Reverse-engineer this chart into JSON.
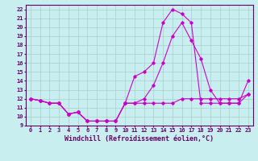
{
  "xlabel": "Windchill (Refroidissement éolien,°C)",
  "bg_color": "#c8eef0",
  "line_color": "#cc00cc",
  "xlim": [
    -0.5,
    23.5
  ],
  "ylim": [
    9,
    22.5
  ],
  "yticks": [
    9,
    10,
    11,
    12,
    13,
    14,
    15,
    16,
    17,
    18,
    19,
    20,
    21,
    22
  ],
  "xticks": [
    0,
    1,
    2,
    3,
    4,
    5,
    6,
    7,
    8,
    9,
    10,
    11,
    12,
    13,
    14,
    15,
    16,
    17,
    18,
    19,
    20,
    21,
    22,
    23
  ],
  "line1_x": [
    0,
    1,
    2,
    3,
    4,
    5,
    6,
    7,
    8,
    9,
    10,
    11,
    12,
    13,
    14,
    15,
    16,
    17,
    18,
    19,
    20,
    21,
    22,
    23
  ],
  "line1_y": [
    12,
    11.8,
    11.5,
    11.5,
    10.3,
    10.5,
    9.5,
    9.5,
    9.5,
    9.5,
    11.5,
    11.5,
    11.5,
    11.5,
    11.5,
    11.5,
    12.0,
    12.0,
    12.0,
    12.0,
    12.0,
    12.0,
    12.0,
    12.5
  ],
  "line2_x": [
    0,
    1,
    2,
    3,
    4,
    5,
    6,
    7,
    8,
    9,
    10,
    11,
    12,
    13,
    14,
    15,
    16,
    17,
    18,
    19,
    20,
    21,
    22,
    23
  ],
  "line2_y": [
    12,
    11.8,
    11.5,
    11.5,
    10.3,
    10.5,
    9.5,
    9.5,
    9.5,
    9.5,
    11.5,
    11.5,
    12.0,
    13.5,
    16.0,
    19.0,
    20.5,
    18.5,
    16.5,
    13.0,
    11.5,
    11.5,
    11.5,
    14.0
  ],
  "line3_x": [
    0,
    1,
    2,
    3,
    4,
    5,
    6,
    7,
    8,
    9,
    10,
    11,
    12,
    13,
    14,
    15,
    16,
    17,
    18,
    19,
    20,
    21,
    22,
    23
  ],
  "line3_y": [
    12,
    11.8,
    11.5,
    11.5,
    10.3,
    10.5,
    9.5,
    9.5,
    9.5,
    9.5,
    11.5,
    14.5,
    15.0,
    16.0,
    20.5,
    22.0,
    21.5,
    20.5,
    11.5,
    11.5,
    11.5,
    11.5,
    11.5,
    12.5
  ],
  "grid_color": "#aacccc",
  "marker": "D",
  "marker_size": 1.8,
  "linewidth": 0.8,
  "tick_fontsize": 5.0,
  "label_fontsize": 6.0
}
